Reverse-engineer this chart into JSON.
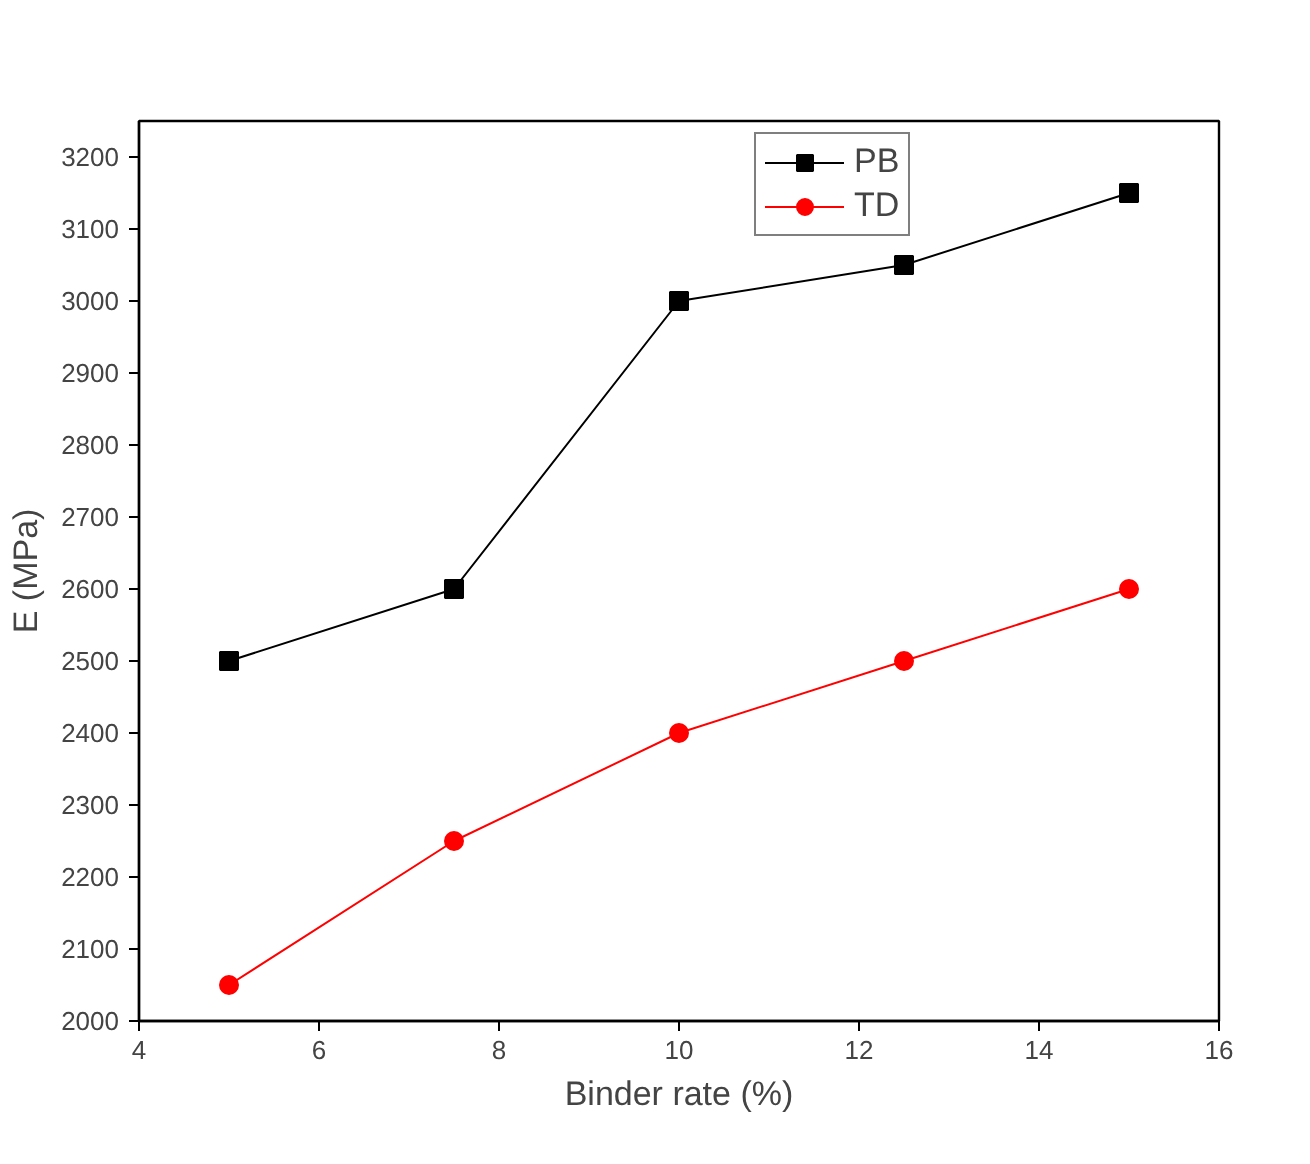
{
  "chart_data": {
    "type": "line",
    "xlabel": "Binder rate (%)",
    "ylabel": "E (MPa)",
    "xlim": [
      4,
      16
    ],
    "xticks": [
      4,
      6,
      8,
      10,
      12,
      14,
      16
    ],
    "ylim": [
      2000,
      3250
    ],
    "yticks": [
      2000,
      2100,
      2200,
      2300,
      2400,
      2500,
      2600,
      2700,
      2800,
      2900,
      3000,
      3100,
      3200
    ],
    "x": [
      5,
      7.5,
      10,
      12.5,
      15
    ],
    "series": [
      {
        "name": "PB",
        "color": "#000000",
        "marker": "square",
        "values": [
          2500,
          2600,
          3000,
          3050,
          3150
        ]
      },
      {
        "name": "TD",
        "color": "#ff0000",
        "marker": "circle",
        "values": [
          2050,
          2250,
          2400,
          2500,
          2600
        ]
      }
    ],
    "legend": "top right",
    "grid": false,
    "line_style": "solid"
  }
}
